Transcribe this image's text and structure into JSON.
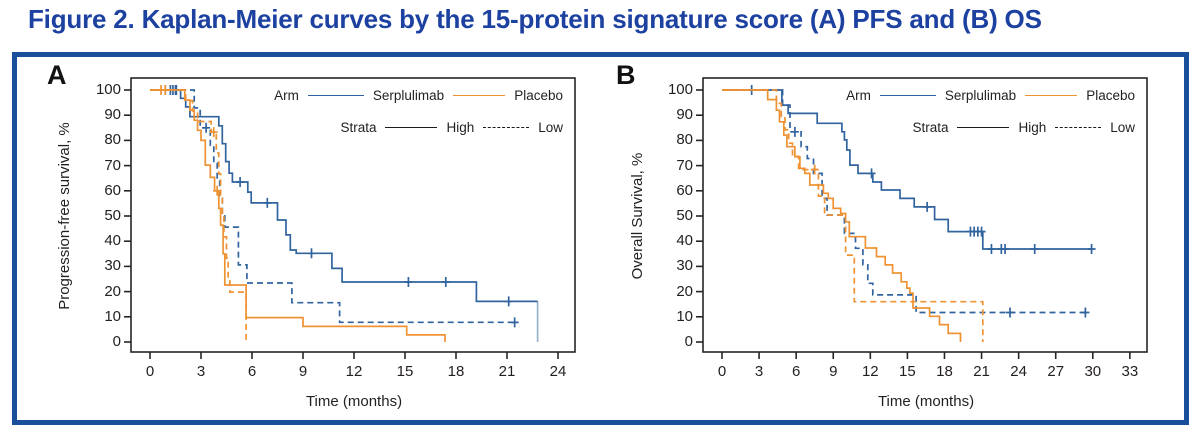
{
  "title": "Figure 2. Kaplan-Meier curves by the 15-protein signature score (A) PFS and (B) OS",
  "colors": {
    "title_blue": "#1c41a0",
    "border_blue": "#1a4f9c",
    "serplulimab_blue": "#31649f",
    "placebo_orange": "#ef9233",
    "strata_black": "#1a1a1a",
    "axis_black": "#262626",
    "tick_text": "#231f20"
  },
  "legend": {
    "arm_label": "Arm",
    "serplulimab_label": "Serplulimab",
    "placebo_label": "Placebo",
    "strata_label": "Strata",
    "high_label": "High",
    "low_label": "Low"
  },
  "chart_data": [
    {
      "panel_label": "A",
      "type": "line",
      "km_type": "kaplan_meier_step",
      "xlabel": "Time (months)",
      "ylabel": "Progression-free survival, %",
      "xticks": [
        0,
        3,
        6,
        9,
        12,
        15,
        18,
        21,
        24
      ],
      "yticks": [
        0,
        10,
        20,
        30,
        40,
        50,
        60,
        70,
        80,
        90,
        100
      ],
      "xlim": [
        0,
        25
      ],
      "ylim": [
        0,
        100
      ],
      "legend_position": "top-right-inside",
      "series": [
        {
          "name": "Serplulimab High",
          "arm": "Serplulimab",
          "strata": "High",
          "color_key": "serplulimab_blue",
          "dashed": false,
          "points": [
            [
              0,
              100
            ],
            [
              1.8,
              96.7
            ],
            [
              2.1,
              93.3
            ],
            [
              2.35,
              89.4
            ],
            [
              4.05,
              85.8
            ],
            [
              4.25,
              78.7
            ],
            [
              4.45,
              71.6
            ],
            [
              4.65,
              67.0
            ],
            [
              4.85,
              63.5
            ],
            [
              5.75,
              59.5
            ],
            [
              5.95,
              55.2
            ],
            [
              7.5,
              48.4
            ],
            [
              8.0,
              42.5
            ],
            [
              8.25,
              36.5
            ],
            [
              8.6,
              35.2
            ],
            [
              10.7,
              29.2
            ],
            [
              11.3,
              23.8
            ],
            [
              19.2,
              16.1
            ]
          ],
          "end_drop": {
            "t": 22.8,
            "to": 0,
            "light": true
          },
          "censors": [
            [
              0.9,
              100
            ],
            [
              1.2,
              100
            ],
            [
              1.5,
              100
            ],
            [
              5.3,
              63.5
            ],
            [
              6.9,
              55.2
            ],
            [
              9.5,
              35.2
            ],
            [
              15.2,
              23.8
            ],
            [
              17.4,
              23.8
            ],
            [
              21.1,
              16.1
            ]
          ]
        },
        {
          "name": "Serplulimab Low",
          "arm": "Serplulimab",
          "strata": "Low",
          "color_key": "serplulimab_blue",
          "dashed": true,
          "points": [
            [
              0,
              100
            ],
            [
              2.6,
              92.9
            ],
            [
              2.95,
              85.0
            ],
            [
              3.55,
              78.0
            ],
            [
              3.75,
              71.0
            ],
            [
              3.95,
              64.0
            ],
            [
              4.1,
              57.0
            ],
            [
              4.25,
              50.0
            ],
            [
              4.4,
              45.6
            ],
            [
              5.2,
              30.6
            ],
            [
              5.7,
              23.4
            ],
            [
              8.35,
              15.6
            ],
            [
              11.15,
              7.8
            ]
          ],
          "run_to": 21.6,
          "censors": [
            [
              1.35,
              100
            ],
            [
              1.55,
              100
            ],
            [
              3.3,
              85.0
            ],
            [
              21.45,
              7.8
            ]
          ]
        },
        {
          "name": "Placebo High",
          "arm": "Placebo",
          "strata": "High",
          "color_key": "placebo_orange",
          "dashed": false,
          "points": [
            [
              0,
              100
            ],
            [
              2.05,
              96.0
            ],
            [
              2.35,
              92.0
            ],
            [
              2.6,
              88.0
            ],
            [
              2.8,
              84.0
            ],
            [
              3.0,
              80.0
            ],
            [
              3.25,
              70.2
            ],
            [
              3.55,
              65.3
            ],
            [
              3.8,
              60.0
            ],
            [
              4.05,
              53.0
            ],
            [
              4.15,
              46.4
            ],
            [
              4.3,
              35.0
            ],
            [
              4.4,
              22.6
            ],
            [
              5.65,
              9.7
            ],
            [
              9.0,
              6.2
            ],
            [
              15.1,
              2.8
            ],
            [
              17.35,
              0
            ]
          ],
          "censors": [
            [
              0.65,
              100
            ],
            [
              0.9,
              100
            ],
            [
              3.95,
              60.0
            ]
          ]
        },
        {
          "name": "Placebo Low",
          "arm": "Placebo",
          "strata": "Low",
          "color_key": "placebo_orange",
          "dashed": true,
          "points": [
            [
              0,
              100
            ],
            [
              2.1,
              95.8
            ],
            [
              2.5,
              91.7
            ],
            [
              2.8,
              87.5
            ],
            [
              3.6,
              83.3
            ],
            [
              3.9,
              75.0
            ],
            [
              4.05,
              66.7
            ],
            [
              4.15,
              58.3
            ],
            [
              4.25,
              50.0
            ],
            [
              4.35,
              41.7
            ],
            [
              4.5,
              33.3
            ],
            [
              4.6,
              25.0
            ],
            [
              4.7,
              19.8
            ],
            [
              5.65,
              0
            ]
          ],
          "censors": [
            [
              3.75,
              83.3
            ]
          ]
        }
      ]
    },
    {
      "panel_label": "B",
      "type": "line",
      "km_type": "kaplan_meier_step",
      "xlabel": "Time (months)",
      "ylabel": "Overall Survival, %",
      "xticks": [
        0,
        3,
        6,
        9,
        12,
        15,
        18,
        21,
        24,
        27,
        30,
        33
      ],
      "yticks": [
        0,
        10,
        20,
        30,
        40,
        50,
        60,
        70,
        80,
        90,
        100
      ],
      "xlim": [
        0,
        34
      ],
      "ylim": [
        0,
        100
      ],
      "legend_position": "top-right-inside",
      "series": [
        {
          "name": "Serplulimab High",
          "arm": "Serplulimab",
          "strata": "High",
          "color_key": "serplulimab_blue",
          "dashed": false,
          "points": [
            [
              0,
              100
            ],
            [
              4.85,
              94.0
            ],
            [
              5.35,
              90.7
            ],
            [
              7.7,
              86.8
            ],
            [
              9.7,
              83.4
            ],
            [
              9.9,
              80.2
            ],
            [
              10.1,
              76.2
            ],
            [
              10.35,
              70.2
            ],
            [
              11.0,
              66.9
            ],
            [
              12.2,
              63.5
            ],
            [
              12.9,
              60.3
            ],
            [
              14.4,
              57.0
            ],
            [
              15.55,
              53.6
            ],
            [
              17.2,
              48.6
            ],
            [
              18.3,
              43.8
            ],
            [
              21.1,
              36.9
            ]
          ],
          "run_to": 30.0,
          "censors": [
            [
              2.4,
              100
            ],
            [
              12.1,
              66.9
            ],
            [
              16.6,
              53.6
            ],
            [
              20.1,
              43.8
            ],
            [
              20.4,
              43.8
            ],
            [
              20.7,
              43.8
            ],
            [
              21.0,
              43.8
            ],
            [
              21.8,
              36.9
            ],
            [
              22.6,
              36.9
            ],
            [
              22.9,
              36.9
            ],
            [
              25.3,
              36.9
            ],
            [
              29.9,
              36.9
            ]
          ]
        },
        {
          "name": "Serplulimab Low",
          "arm": "Serplulimab",
          "strata": "Low",
          "color_key": "serplulimab_blue",
          "dashed": true,
          "points": [
            [
              0,
              100
            ],
            [
              4.9,
              94.0
            ],
            [
              5.5,
              83.4
            ],
            [
              6.4,
              77.5
            ],
            [
              6.9,
              72.8
            ],
            [
              7.4,
              66.9
            ],
            [
              8.1,
              57.0
            ],
            [
              8.5,
              50.4
            ],
            [
              9.9,
              43.1
            ],
            [
              10.8,
              37.2
            ],
            [
              11.4,
              30.6
            ],
            [
              11.8,
              23.3
            ],
            [
              12.2,
              18.7
            ],
            [
              15.7,
              11.7
            ]
          ],
          "run_to": 29.55,
          "censors": [
            [
              5.9,
              83.4
            ],
            [
              23.3,
              11.7
            ],
            [
              29.4,
              11.7
            ]
          ]
        },
        {
          "name": "Placebo High",
          "arm": "Placebo",
          "strata": "High",
          "color_key": "placebo_orange",
          "dashed": false,
          "points": [
            [
              0,
              100
            ],
            [
              3.7,
              96.2
            ],
            [
              4.4,
              92.0
            ],
            [
              4.65,
              87.4
            ],
            [
              5.0,
              82.1
            ],
            [
              5.25,
              77.5
            ],
            [
              5.9,
              73.5
            ],
            [
              6.3,
              68.9
            ],
            [
              6.7,
              66.9
            ],
            [
              7.1,
              62.3
            ],
            [
              8.2,
              59.0
            ],
            [
              8.6,
              57.0
            ],
            [
              9.0,
              53.0
            ],
            [
              9.6,
              51.0
            ],
            [
              10.0,
              47.7
            ],
            [
              10.3,
              41.8
            ],
            [
              11.6,
              37.3
            ],
            [
              12.5,
              33.9
            ],
            [
              13.2,
              30.6
            ],
            [
              13.8,
              27.4
            ],
            [
              14.5,
              23.9
            ],
            [
              14.95,
              21.4
            ],
            [
              15.2,
              19.4
            ],
            [
              15.45,
              13.5
            ],
            [
              16.8,
              10.2
            ],
            [
              17.6,
              6.9
            ],
            [
              18.3,
              3.4
            ],
            [
              19.3,
              0
            ]
          ],
          "censors": []
        },
        {
          "name": "Placebo Low",
          "arm": "Placebo",
          "strata": "Low",
          "color_key": "placebo_orange",
          "dashed": true,
          "points": [
            [
              0,
              100
            ],
            [
              4.4,
              94.7
            ],
            [
              4.8,
              89.5
            ],
            [
              5.1,
              84.2
            ],
            [
              5.4,
              78.9
            ],
            [
              5.7,
              73.7
            ],
            [
              6.2,
              68.4
            ],
            [
              7.8,
              57.9
            ],
            [
              8.3,
              50.4
            ],
            [
              10.0,
              34.5
            ],
            [
              10.7,
              16.0
            ],
            [
              21.1,
              0
            ]
          ],
          "censors": [
            [
              7.5,
              68.4
            ]
          ]
        }
      ]
    }
  ]
}
